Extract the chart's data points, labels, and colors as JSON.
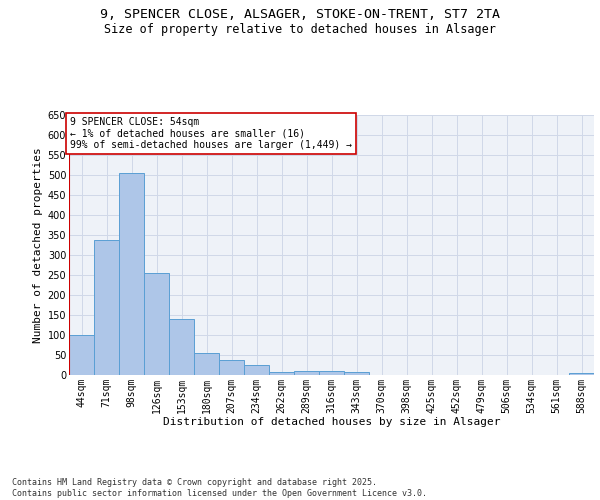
{
  "title_line1": "9, SPENCER CLOSE, ALSAGER, STOKE-ON-TRENT, ST7 2TA",
  "title_line2": "Size of property relative to detached houses in Alsager",
  "xlabel": "Distribution of detached houses by size in Alsager",
  "ylabel": "Number of detached properties",
  "categories": [
    "44sqm",
    "71sqm",
    "98sqm",
    "126sqm",
    "153sqm",
    "180sqm",
    "207sqm",
    "234sqm",
    "262sqm",
    "289sqm",
    "316sqm",
    "343sqm",
    "370sqm",
    "398sqm",
    "425sqm",
    "452sqm",
    "479sqm",
    "506sqm",
    "534sqm",
    "561sqm",
    "588sqm"
  ],
  "values": [
    100,
    338,
    506,
    255,
    140,
    54,
    37,
    25,
    8,
    10,
    10,
    7,
    0,
    0,
    0,
    0,
    0,
    0,
    0,
    0,
    5
  ],
  "bar_color": "#aec6e8",
  "bar_edge_color": "#5a9fd4",
  "highlight_color": "#cc0000",
  "annotation_text": "9 SPENCER CLOSE: 54sqm\n← 1% of detached houses are smaller (16)\n99% of semi-detached houses are larger (1,449) →",
  "annotation_box_color": "#ffffff",
  "annotation_box_edge": "#cc0000",
  "ylim": [
    0,
    650
  ],
  "yticks": [
    0,
    50,
    100,
    150,
    200,
    250,
    300,
    350,
    400,
    450,
    500,
    550,
    600,
    650
  ],
  "grid_color": "#d0d8e8",
  "background_color": "#eef2f8",
  "footnote": "Contains HM Land Registry data © Crown copyright and database right 2025.\nContains public sector information licensed under the Open Government Licence v3.0.",
  "title_fontsize": 9.5,
  "subtitle_fontsize": 8.5,
  "xlabel_fontsize": 8,
  "ylabel_fontsize": 8,
  "tick_fontsize": 7,
  "annotation_fontsize": 7,
  "footnote_fontsize": 6
}
